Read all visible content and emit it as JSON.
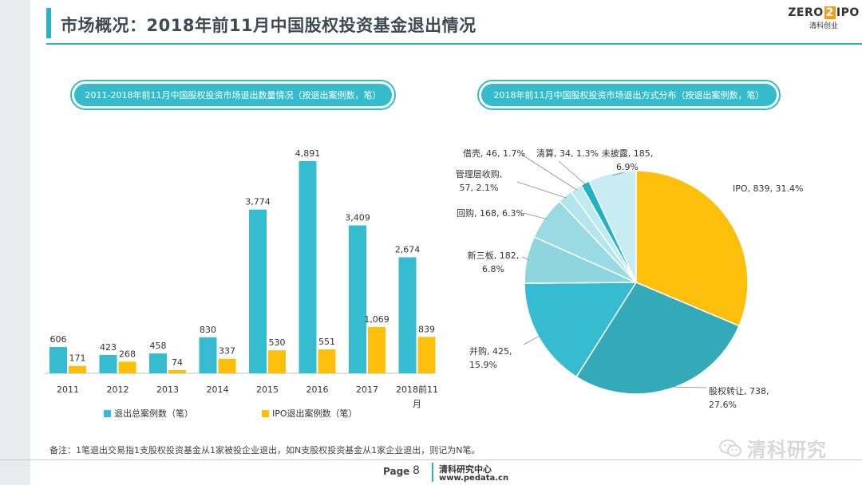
{
  "header": {
    "title": "市场概况：2018年前11月中国股权投资基金退出情况",
    "logo_main": "ZERO",
    "logo_z": "2",
    "logo_ipo": "IPO",
    "logo_sub": "清科创业"
  },
  "left_panel": {
    "title": "2011-2018年前11月中国股权投资市场退出数量情况（按退出案例数，笔）"
  },
  "right_panel": {
    "title": "2018年前11月中国股权投资市场退出方式分布（按退出案例数，笔）"
  },
  "chart_data": [
    {
      "type": "bar",
      "categories": [
        "2011",
        "2012",
        "2013",
        "2014",
        "2015",
        "2016",
        "2017",
        "2018前11月"
      ],
      "series": [
        {
          "name": "退出总案例数（笔）",
          "color": "#36bcd0",
          "values": [
            606,
            423,
            458,
            830,
            3774,
            4891,
            3409,
            2674
          ]
        },
        {
          "name": "IPO退出案例数（笔）",
          "color": "#fcbf0c",
          "values": [
            171,
            268,
            74,
            337,
            530,
            551,
            1069,
            839
          ]
        }
      ],
      "value_labels": [
        [
          "606",
          "423",
          "458",
          "830",
          "3,774",
          "4,891",
          "3,409",
          "2,674"
        ],
        [
          "171",
          "268",
          "74",
          "337",
          "530",
          "551",
          "1,069",
          "839"
        ]
      ],
      "ylim": [
        0,
        5000
      ],
      "grid": false,
      "legend_position": "bottom"
    },
    {
      "type": "pie",
      "slices": [
        {
          "label": "IPO, 839, 31.4%",
          "value": 839,
          "color": "#fcbf0c"
        },
        {
          "label": "股权转让, 738, 27.6%",
          "value": 738,
          "color": "#34aab8"
        },
        {
          "label": "并购, 425, 15.9%",
          "value": 425,
          "color": "#36bcd0"
        },
        {
          "label": "新三板, 182, 6.8%",
          "value": 182,
          "color": "#8fd5df"
        },
        {
          "label": "回购, 168, 6.3%",
          "value": 168,
          "color": "#9adbe3"
        },
        {
          "label": "管理层收购, 57, 2.1%",
          "value": 57,
          "color": "#b2e5ec"
        },
        {
          "label": "借壳, 46, 1.7%",
          "value": 46,
          "color": "#bfeaf0"
        },
        {
          "label": "清算, 34, 1.3%",
          "value": 34,
          "color": "#1fb1c4"
        },
        {
          "label": "未披露, 185, 6.9%",
          "value": 185,
          "color": "#c8ecf1"
        }
      ]
    }
  ],
  "note": "备注：1笔退出交易指1支股权投资基金从1家被投企业退出，如N支股权投资基金从1家企业退出，则记为N笔。",
  "footer": {
    "page_label": "Page",
    "page_number": "8",
    "center_name": "清科研究中心",
    "center_url": "www.pedata.cn",
    "watermark": "清科研究"
  }
}
